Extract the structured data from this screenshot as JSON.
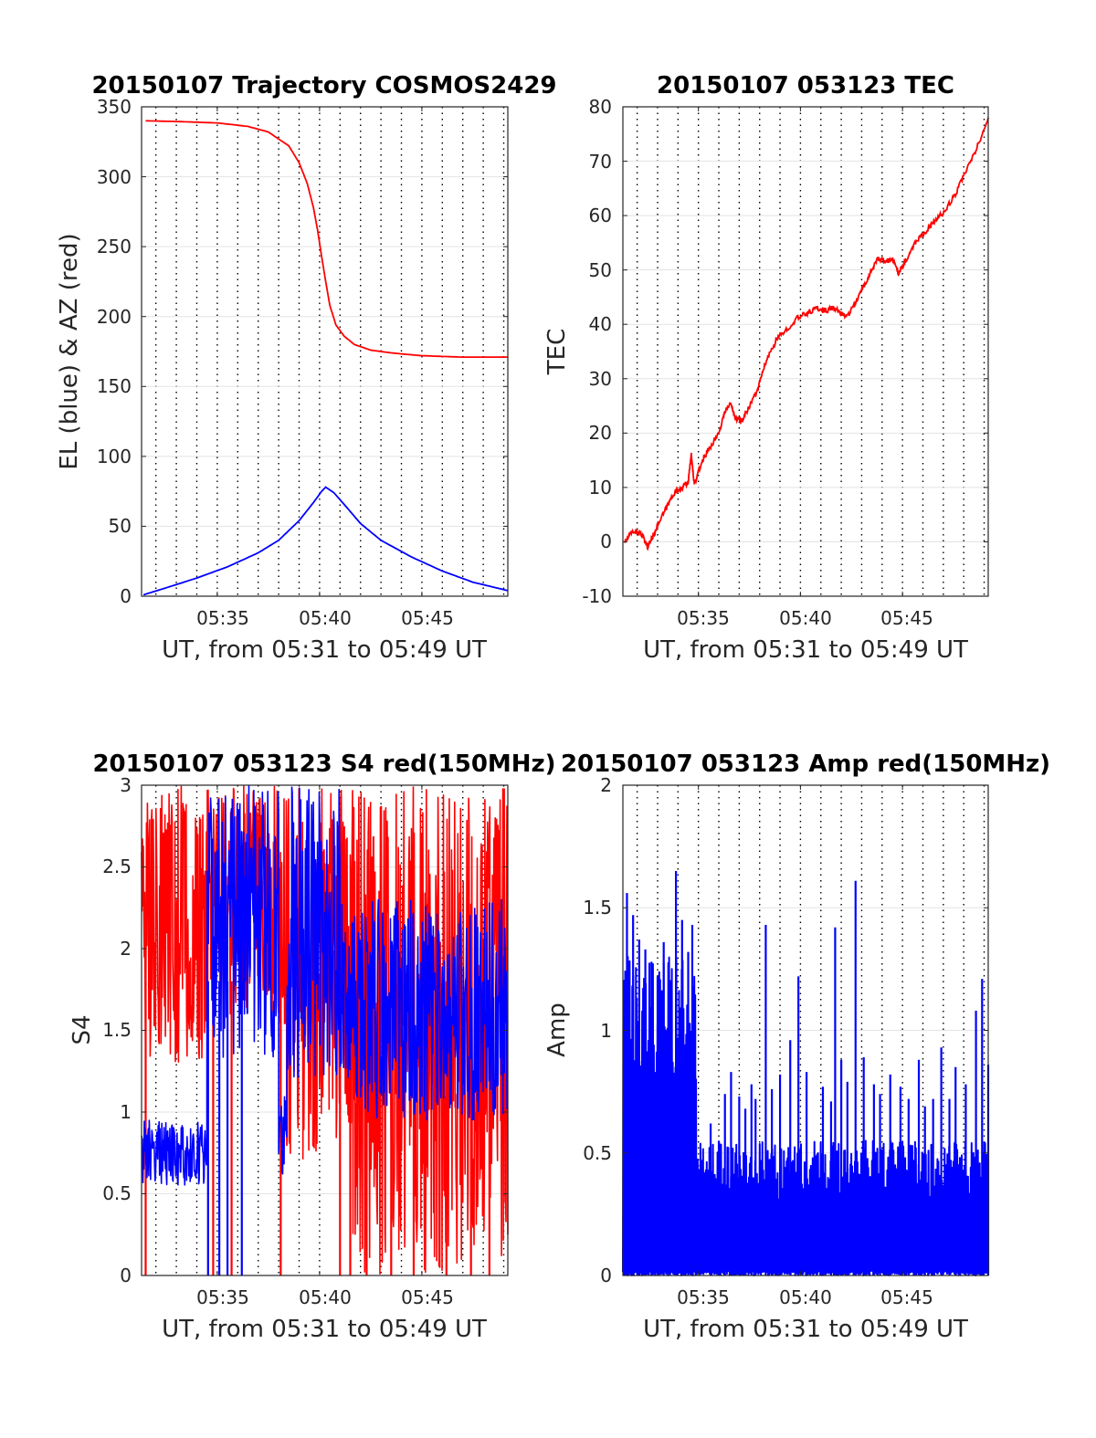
{
  "figure": {
    "background": "#ffffff"
  },
  "chart_data": [
    {
      "id": "trajectory",
      "type": "line",
      "title": "20150107 Trajectory COSMOS2429",
      "xlabel": "UT, from 05:31 to 05:49 UT",
      "ylabel": "EL (blue) & AZ (red)",
      "xlim_minutes": [
        31.3,
        49.2
      ],
      "ylim": [
        0,
        350
      ],
      "x_ticks": [
        "05:35",
        "05:40",
        "05:45"
      ],
      "x_tick_values": [
        35,
        40,
        45
      ],
      "y_ticks": [
        0,
        50,
        100,
        150,
        200,
        250,
        300,
        350
      ],
      "grid": true,
      "series": [
        {
          "color": "#ff0000",
          "x": [
            31.5,
            33,
            35,
            36.5,
            37.5,
            38.5,
            39,
            39.4,
            39.7,
            39.9,
            40.1,
            40.3,
            40.5,
            40.8,
            41.2,
            41.7,
            42.5,
            43.5,
            45,
            47,
            49.2
          ],
          "y": [
            340,
            339.5,
            338.5,
            336,
            332,
            322,
            310,
            295,
            278,
            262,
            243,
            225,
            208,
            194,
            186,
            180,
            176,
            174,
            172,
            171,
            171
          ]
        },
        {
          "color": "#0000ff",
          "x": [
            31.4,
            32.5,
            34,
            35.5,
            37,
            38,
            39,
            39.7,
            40.1,
            40.3,
            40.7,
            41.3,
            42,
            43,
            44.5,
            46,
            47.5,
            49.2
          ],
          "y": [
            1,
            6,
            13,
            21,
            31,
            40,
            54,
            67,
            75,
            78,
            74,
            64,
            52,
            40,
            28,
            18,
            10,
            4
          ]
        }
      ]
    },
    {
      "id": "tec",
      "type": "line",
      "title": "20150107 053123 TEC",
      "xlabel": "UT, from 05:31 to 05:49 UT",
      "ylabel": "TEC",
      "xlim_minutes": [
        31.3,
        49.2
      ],
      "ylim": [
        -10,
        80
      ],
      "x_ticks": [
        "05:35",
        "05:40",
        "05:45"
      ],
      "x_tick_values": [
        35,
        40,
        45
      ],
      "y_ticks": [
        -10,
        0,
        10,
        20,
        30,
        40,
        50,
        60,
        70,
        80
      ],
      "grid": true,
      "series": [
        {
          "color": "#ff0000",
          "x": [
            31.4,
            31.8,
            32.2,
            32.5,
            32.7,
            33,
            33.4,
            33.8,
            34.2,
            34.5,
            34.65,
            34.8,
            35.2,
            35.5,
            36,
            36.3,
            36.6,
            36.8,
            37.1,
            37.5,
            37.9,
            38.3,
            38.8,
            39.3,
            39.8,
            40.3,
            40.8,
            41.2,
            41.6,
            42,
            42.3,
            42.7,
            43.1,
            43.5,
            43.8,
            44.2,
            44.5,
            44.8,
            45.2,
            45.6,
            46.1,
            46.6,
            47.1,
            47.6,
            48.1,
            48.6,
            49.2
          ],
          "y": [
            0,
            2,
            1.5,
            -1,
            0.5,
            3,
            6,
            9,
            10,
            11,
            16,
            10.5,
            15,
            17,
            20,
            24,
            25.5,
            23,
            22,
            25,
            28,
            33,
            37,
            39,
            41,
            42,
            43,
            42.5,
            43,
            42,
            41.5,
            44,
            47,
            50,
            52,
            51.5,
            52,
            49.5,
            52,
            55,
            57,
            59,
            61,
            64,
            68,
            72,
            78
          ]
        }
      ]
    },
    {
      "id": "s4",
      "type": "line",
      "title": "20150107 053123 S4 red(150MHz)",
      "xlabel": "UT, from 05:31 to 05:49 UT",
      "ylabel": "S4",
      "xlim_minutes": [
        31.3,
        49.2
      ],
      "ylim": [
        0,
        3
      ],
      "x_ticks": [
        "05:35",
        "05:40",
        "05:45"
      ],
      "x_tick_values": [
        35,
        40,
        45
      ],
      "y_ticks": [
        0,
        0.5,
        1,
        1.5,
        2,
        2.5,
        3
      ],
      "grid": true,
      "series": [
        {
          "color": "#ff0000",
          "segments": [
            {
              "x0": 31.3,
              "x1": 34.8,
              "min": 1.3,
              "max": 3.0
            },
            {
              "x0": 34.8,
              "x1": 38.0,
              "min": 1.6,
              "max": 3.0
            },
            {
              "x0": 38.0,
              "x1": 41.5,
              "min": 0.7,
              "max": 3.0
            },
            {
              "x0": 41.5,
              "x1": 49.2,
              "min": 0.0,
              "max": 3.0
            }
          ],
          "drops_to_zero": [
            31.5,
            34.8,
            35.7,
            38.1,
            41.0,
            41.5,
            42.3,
            43.5,
            44.6,
            46.2,
            47.4,
            48.3
          ]
        },
        {
          "color": "#0000ff",
          "segments": [
            {
              "x0": 31.3,
              "x1": 34.5,
              "min": 0.55,
              "max": 0.95
            },
            {
              "x0": 34.5,
              "x1": 38.0,
              "min": 1.3,
              "max": 3.0
            },
            {
              "x0": 38.0,
              "x1": 38.4,
              "min": 0.6,
              "max": 1.1
            },
            {
              "x0": 38.4,
              "x1": 41.0,
              "min": 1.2,
              "max": 3.0
            },
            {
              "x0": 41.0,
              "x1": 49.2,
              "min": 0.95,
              "max": 2.3
            }
          ],
          "drops_to_zero": [
            34.55,
            35.1,
            35.5,
            36.2
          ]
        }
      ]
    },
    {
      "id": "amp",
      "type": "line",
      "title": "20150107 053123 Amp red(150MHz)",
      "xlabel": "UT, from 05:31 to 05:49 UT",
      "ylabel": "Amp",
      "xlim_minutes": [
        31.3,
        49.2
      ],
      "ylim": [
        0,
        2
      ],
      "x_ticks": [
        "05:35",
        "05:40",
        "05:45"
      ],
      "x_tick_values": [
        35,
        40,
        45
      ],
      "y_ticks": [
        0,
        0.5,
        1,
        1.5,
        2
      ],
      "grid": true,
      "series": [
        {
          "color": "#0000ff",
          "segments": [
            {
              "x0": 31.3,
              "x1": 34.9,
              "min": 0.0,
              "max": 1.3
            },
            {
              "x0": 34.9,
              "x1": 49.2,
              "min": 0.0,
              "max": 0.55
            }
          ],
          "peaks": [
            [
              31.5,
              1.56
            ],
            [
              31.8,
              1.47
            ],
            [
              32.1,
              1.37
            ],
            [
              32.4,
              1.33
            ],
            [
              32.7,
              1.28
            ],
            [
              33.0,
              1.22
            ],
            [
              33.3,
              1.36
            ],
            [
              33.6,
              1.14
            ],
            [
              33.9,
              1.65
            ],
            [
              34.2,
              1.45
            ],
            [
              34.5,
              1.32
            ],
            [
              34.7,
              1.43
            ],
            [
              35.6,
              0.62
            ],
            [
              36.0,
              0.55
            ],
            [
              36.3,
              0.74
            ],
            [
              36.6,
              0.83
            ],
            [
              37.0,
              0.73
            ],
            [
              37.3,
              0.68
            ],
            [
              37.6,
              0.78
            ],
            [
              37.8,
              0.72
            ],
            [
              38.3,
              1.43
            ],
            [
              38.6,
              0.76
            ],
            [
              39.0,
              0.82
            ],
            [
              39.5,
              0.96
            ],
            [
              39.9,
              1.22
            ],
            [
              40.3,
              0.83
            ],
            [
              41.1,
              0.77
            ],
            [
              41.5,
              0.71
            ],
            [
              41.7,
              1.42
            ],
            [
              42.0,
              0.88
            ],
            [
              42.3,
              0.79
            ],
            [
              42.7,
              1.61
            ],
            [
              43.1,
              0.89
            ],
            [
              43.6,
              0.78
            ],
            [
              43.9,
              0.74
            ],
            [
              44.4,
              0.82
            ],
            [
              44.9,
              0.77
            ],
            [
              45.3,
              0.72
            ],
            [
              45.8,
              0.88
            ],
            [
              46.1,
              0.69
            ],
            [
              46.5,
              0.72
            ],
            [
              46.9,
              0.93
            ],
            [
              47.3,
              0.72
            ],
            [
              47.6,
              0.85
            ],
            [
              48.1,
              0.78
            ],
            [
              48.6,
              1.08
            ],
            [
              48.9,
              1.21
            ],
            [
              49.2,
              0.86
            ]
          ]
        }
      ]
    }
  ]
}
